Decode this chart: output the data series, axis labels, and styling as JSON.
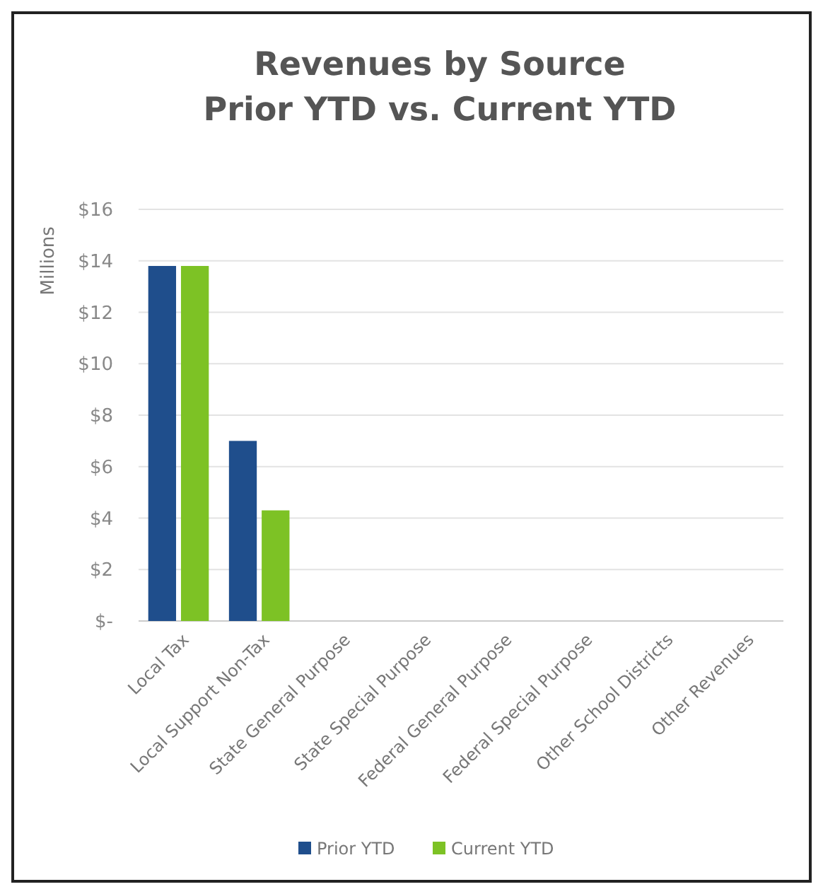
{
  "chart_data": {
    "type": "bar",
    "title": "Revenues by Source\nPrior YTD vs. Current YTD",
    "ylabel": "Millions",
    "categories": [
      "Local Tax",
      "Local Support Non-Tax",
      "State General Purpose",
      "State Special Purpose",
      "Federal General Purpose",
      "Federal Special Purpose",
      "Other School Districts",
      "Other Revenues"
    ],
    "series": [
      {
        "name": "Prior YTD",
        "color": "#1f4e8c",
        "values": [
          13.8,
          7.0,
          0,
          0,
          0,
          0,
          0,
          0
        ]
      },
      {
        "name": "Current YTD",
        "color": "#7dc225",
        "values": [
          13.8,
          4.3,
          0,
          0,
          0,
          0,
          0,
          0
        ]
      }
    ],
    "ylim": [
      0,
      16
    ],
    "yticks": [
      {
        "value": 0,
        "label": "$-"
      },
      {
        "value": 2,
        "label": "$2"
      },
      {
        "value": 4,
        "label": "$4"
      },
      {
        "value": 6,
        "label": "$6"
      },
      {
        "value": 8,
        "label": "$8"
      },
      {
        "value": 10,
        "label": "$10"
      },
      {
        "value": 12,
        "label": "$12"
      },
      {
        "value": 14,
        "label": "$14"
      },
      {
        "value": 16,
        "label": "$16"
      }
    ],
    "grid": "y",
    "legend": "bottom"
  }
}
